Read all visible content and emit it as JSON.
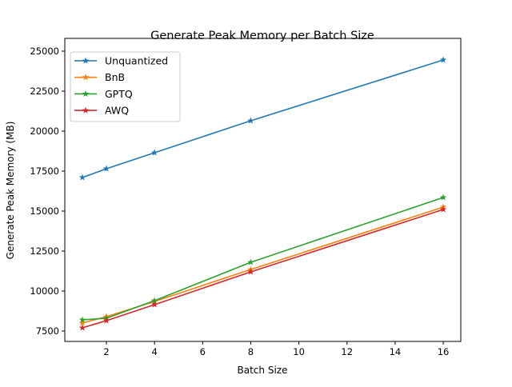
{
  "chart_data": {
    "type": "line",
    "title": "Generate Peak Memory per Batch Size",
    "xlabel": "Batch Size",
    "ylabel": "Generate Peak Memory (MB)",
    "xlim": [
      0.27,
      16.73
    ],
    "ylim": [
      6850,
      25800
    ],
    "xticks": [
      2,
      4,
      6,
      8,
      10,
      12,
      14,
      16
    ],
    "yticks": [
      7500,
      10000,
      12500,
      15000,
      17500,
      20000,
      22500,
      25000
    ],
    "grid": false,
    "legend_position": "top-left",
    "marker": "star",
    "x": [
      1,
      2,
      4,
      8,
      16
    ],
    "series": [
      {
        "name": "Unquantized",
        "color": "#1f77b4",
        "values": [
          17100,
          17650,
          18650,
          20650,
          24450
        ]
      },
      {
        "name": "BnB",
        "color": "#ff7f0e",
        "values": [
          8000,
          8400,
          9350,
          11350,
          15250
        ]
      },
      {
        "name": "GPTQ",
        "color": "#2ca02c",
        "values": [
          8200,
          8300,
          9400,
          11800,
          15850
        ]
      },
      {
        "name": "AWQ",
        "color": "#d62728",
        "values": [
          7700,
          8150,
          9150,
          11200,
          15100
        ]
      }
    ]
  }
}
